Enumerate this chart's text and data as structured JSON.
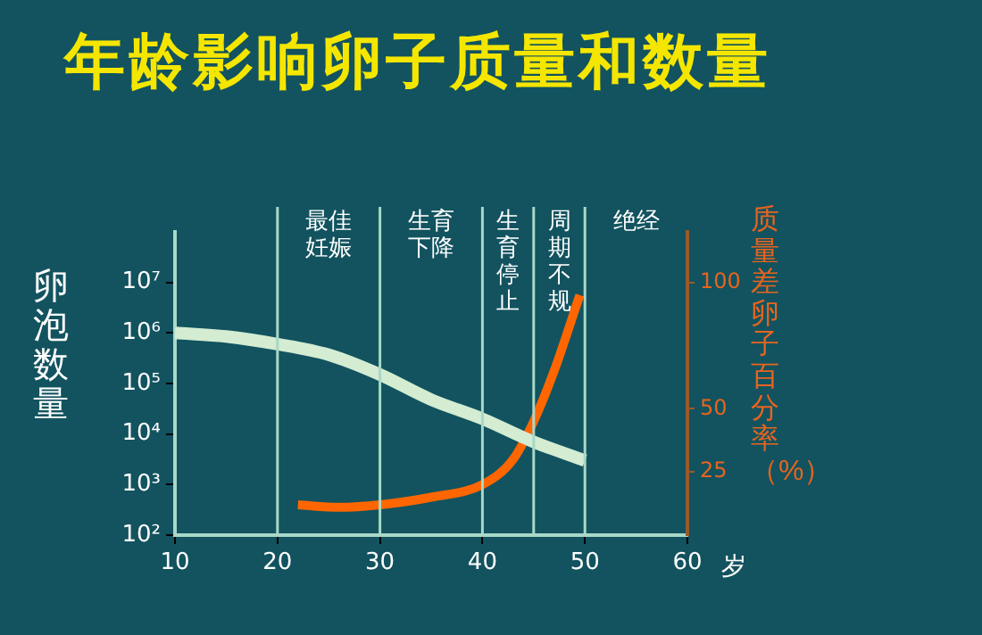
{
  "chart_data": {
    "type": "line",
    "title": "年龄影响卵子质量和数量",
    "xlabel": "岁",
    "ylabel": "卵泡数量",
    "y2label": "质量差卵子百分率（%）",
    "xlim": [
      10,
      60
    ],
    "xticks": [
      10,
      20,
      30,
      40,
      50,
      60
    ],
    "ylim": [
      100,
      100000000
    ],
    "yticks": [
      {
        "value": 100,
        "label": "10²"
      },
      {
        "value": 1000,
        "label": "10³"
      },
      {
        "value": 10000,
        "label": "10⁴"
      },
      {
        "value": 100000,
        "label": "10⁵"
      },
      {
        "value": 1000000,
        "label": "10⁶"
      },
      {
        "value": 10000000,
        "label": "10⁷"
      }
    ],
    "y2lim": [
      0,
      120
    ],
    "y2ticks": [
      25,
      50,
      100
    ],
    "log": "y",
    "grid": false,
    "legend": false,
    "series": [
      {
        "type": "line",
        "color": "#d3ecd2",
        "x": [
          10,
          15,
          20,
          25,
          30,
          35,
          40,
          45,
          50
        ],
        "values": [
          1000000,
          850000,
          600000,
          370000,
          150000,
          48000,
          20000,
          7000,
          3000
        ]
      },
      {
        "type": "line",
        "axis": "y2",
        "color": "#ff6600",
        "x": [
          22,
          26,
          30,
          35,
          40,
          43,
          45,
          47,
          49.5
        ],
        "values": [
          12,
          11,
          12,
          15,
          20,
          30,
          45,
          65,
          95
        ]
      }
    ],
    "ref_lines": [
      {
        "axis": "x",
        "value": 20,
        "label": "最佳妊娠",
        "color": "#a8d8c8"
      },
      {
        "axis": "x",
        "value": 30,
        "label": "生育下降",
        "color": "#a8d8c8"
      },
      {
        "axis": "x",
        "value": 40,
        "label": "生育停止",
        "color": "#a8d8c8"
      },
      {
        "axis": "x",
        "value": 45,
        "label": "周期不规",
        "color": "#a8d8c8"
      },
      {
        "axis": "x",
        "value": 50,
        "label": "绝经",
        "color": "#a8d8c8"
      }
    ]
  }
}
